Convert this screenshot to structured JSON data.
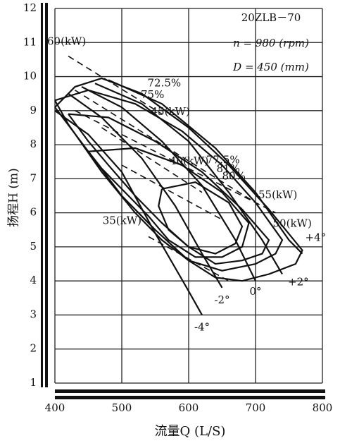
{
  "chart_data": {
    "type": "line",
    "xlabel": "流量Q (L/S)",
    "ylabel": "扬程H (m)",
    "annotations": [
      "20ZLB－70",
      "n = 980 (rpm)",
      "D = 450 (mm)"
    ],
    "xlim": [
      400,
      800
    ],
    "xticks": [
      400,
      500,
      600,
      700,
      800
    ],
    "ylim": [
      1,
      12
    ],
    "yticks": [
      1,
      2,
      3,
      4,
      5,
      6,
      7,
      8,
      9,
      10,
      11,
      12
    ],
    "grid": true,
    "series": [
      {
        "name": "-4°",
        "color": "#111",
        "dashed": false,
        "x": [
          400,
          450,
          500,
          550,
          600,
          620
        ],
        "y": [
          9.0,
          8.3,
          7.2,
          5.4,
          3.7,
          3.0
        ]
      },
      {
        "name": "-2°",
        "color": "#111",
        "dashed": false,
        "x": [
          420,
          470,
          530,
          580,
          620,
          650
        ],
        "y": [
          9.5,
          8.8,
          7.6,
          6.2,
          4.8,
          3.8
        ]
      },
      {
        "name": "0°",
        "color": "#111",
        "dashed": false,
        "x": [
          440,
          500,
          560,
          620,
          670,
          700
        ],
        "y": [
          9.7,
          9.1,
          8.1,
          6.8,
          5.2,
          4.0
        ]
      },
      {
        "name": "+2°",
        "color": "#111",
        "dashed": false,
        "x": [
          460,
          530,
          600,
          660,
          710,
          740
        ],
        "y": [
          9.8,
          9.2,
          8.1,
          6.6,
          5.2,
          4.2
        ]
      },
      {
        "name": "+4°",
        "color": "#111",
        "dashed": false,
        "x": [
          480,
          560,
          640,
          700,
          750,
          770
        ],
        "y": [
          9.9,
          9.2,
          7.9,
          6.6,
          5.2,
          4.8
        ]
      },
      {
        "name": "72.5%",
        "color": "#111",
        "dashed": false,
        "x": [
          400,
          430,
          470,
          530,
          600,
          660,
          720,
          770,
          760,
          720,
          680,
          640,
          600,
          550,
          500,
          450,
          400
        ],
        "y": [
          9.1,
          9.7,
          9.95,
          9.5,
          8.5,
          7.4,
          6.1,
          4.9,
          4.5,
          4.2,
          4.0,
          4.1,
          4.6,
          5.5,
          6.5,
          7.8,
          9.1
        ]
      },
      {
        "name": "75%",
        "color": "#111",
        "dashed": false,
        "x": [
          400,
          450,
          520,
          590,
          650,
          700,
          740,
          730,
          700,
          650,
          600,
          560,
          520,
          470,
          420,
          400
        ],
        "y": [
          9.3,
          9.6,
          9.2,
          8.4,
          7.4,
          6.3,
          5.2,
          4.8,
          4.5,
          4.3,
          4.6,
          5.2,
          6.0,
          7.2,
          8.6,
          9.3
        ]
      },
      {
        "name": "77.5%",
        "color": "#111",
        "dashed": false,
        "x": [
          420,
          480,
          550,
          620,
          680,
          720,
          710,
          680,
          640,
          600,
          560,
          520,
          480,
          450,
          420
        ],
        "y": [
          8.9,
          8.8,
          8.1,
          7.2,
          6.1,
          5.2,
          4.8,
          4.6,
          4.5,
          5.0,
          5.7,
          6.5,
          7.4,
          8.1,
          8.9
        ]
      },
      {
        "name": "80%",
        "color": "#111",
        "dashed": false,
        "x": [
          450,
          520,
          590,
          650,
          690,
          680,
          650,
          610,
          570,
          540,
          500,
          470,
          450
        ],
        "y": [
          7.8,
          7.9,
          7.4,
          6.6,
          5.7,
          5.0,
          4.7,
          4.7,
          5.2,
          5.9,
          6.7,
          7.3,
          7.8
        ]
      },
      {
        "name": "81%",
        "color": "#111",
        "dashed": false,
        "x": [
          560,
          610,
          660,
          680,
          670,
          640,
          600,
          570,
          555,
          560
        ],
        "y": [
          6.7,
          6.9,
          6.3,
          5.6,
          5.1,
          4.8,
          5.0,
          5.5,
          6.2,
          6.7
        ]
      },
      {
        "name": "60(kW)",
        "color": "#111",
        "dashed": true,
        "x": [
          420,
          560
        ],
        "y": [
          10.6,
          8.9
        ]
      },
      {
        "name": "55(kW)",
        "color": "#111",
        "dashed": true,
        "x": [
          430,
          700
        ],
        "y": [
          9.6,
          6.3
        ]
      },
      {
        "name": "50(kW)",
        "color": "#111",
        "dashed": true,
        "x": [
          430,
          730
        ],
        "y": [
          9.0,
          6.0
        ]
      },
      {
        "name": "45(kW)",
        "color": "#111",
        "dashed": true,
        "x": [
          470,
          620
        ],
        "y": [
          8.5,
          6.6
        ]
      },
      {
        "name": "40(kW)",
        "color": "#111",
        "dashed": true,
        "x": [
          500,
          650
        ],
        "y": [
          7.4,
          5.8
        ]
      },
      {
        "name": "35(kW)",
        "color": "#111",
        "dashed": true,
        "x": [
          540,
          660
        ],
        "y": [
          5.3,
          4.0
        ]
      }
    ]
  }
}
